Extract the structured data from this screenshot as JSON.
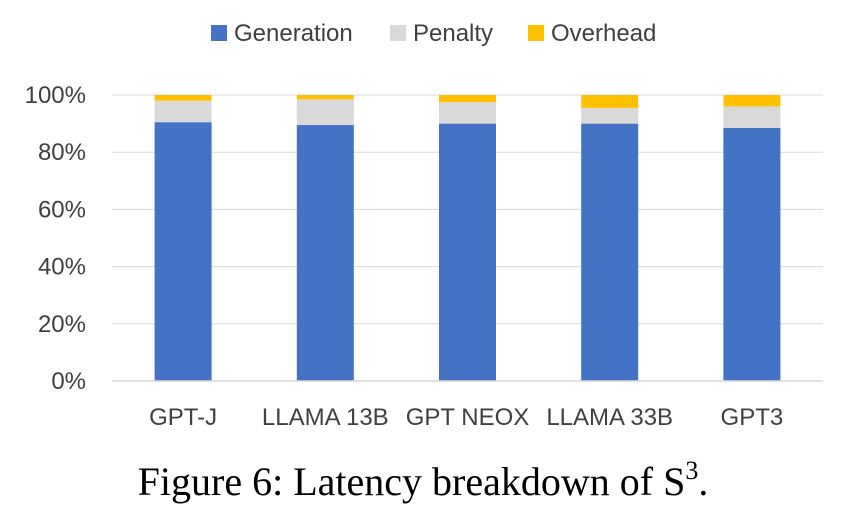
{
  "chart_data": {
    "type": "bar",
    "stacked": true,
    "categories": [
      "GPT-J",
      "LLAMA 13B",
      "GPT NEOX",
      "LLAMA 33B",
      "GPT3"
    ],
    "series": [
      {
        "name": "Generation",
        "color": "#4472C4",
        "values": [
          90.5,
          89.5,
          90,
          90,
          88.5
        ]
      },
      {
        "name": "Penalty",
        "color": "#D9D9D9",
        "values": [
          7.5,
          9,
          7.5,
          5.5,
          7.5
        ]
      },
      {
        "name": "Overhead",
        "color": "#FFC000",
        "values": [
          2,
          1.5,
          2.5,
          4.5,
          4
        ]
      }
    ],
    "ylim": [
      0,
      100
    ],
    "yticks": [
      "0%",
      "20%",
      "40%",
      "60%",
      "80%",
      "100%"
    ],
    "grid": true,
    "legend_position": "top"
  },
  "caption": {
    "prefix": "Figure 6: Latency breakdown of S",
    "superscript": "3",
    "suffix": "."
  }
}
